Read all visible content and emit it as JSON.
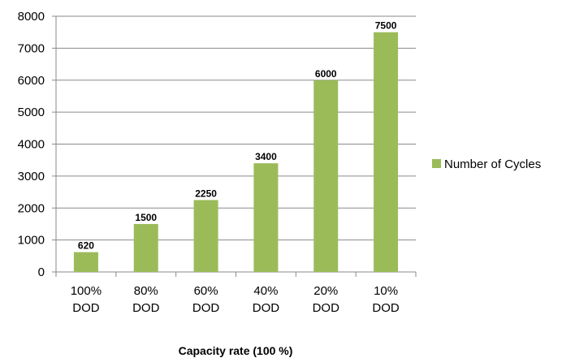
{
  "chart_data": {
    "type": "bar",
    "title": "",
    "xlabel": "Capacity rate (100 %)",
    "ylabel": "",
    "categories": [
      [
        "100%",
        "DOD"
      ],
      [
        "80%",
        "DOD"
      ],
      [
        "60%",
        "DOD"
      ],
      [
        "40%",
        "DOD"
      ],
      [
        "20%",
        "DOD"
      ],
      [
        "10%",
        "DOD"
      ]
    ],
    "series": [
      {
        "name": "Number of Cycles",
        "values": [
          620,
          1500,
          2250,
          3400,
          6000,
          7500
        ],
        "color": "#9bbb59"
      }
    ],
    "ylim": [
      0,
      8000
    ],
    "yticks": [
      0,
      1000,
      2000,
      3000,
      4000,
      5000,
      6000,
      7000,
      8000
    ],
    "grid": true,
    "legend_position": "right"
  }
}
